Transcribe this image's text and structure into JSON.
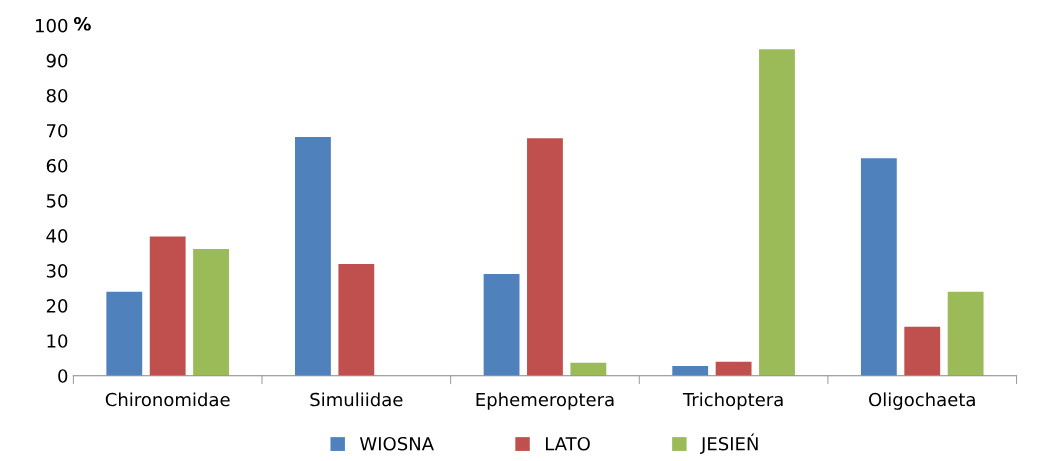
{
  "chart_data": {
    "type": "bar",
    "ylabel": "%",
    "categories": [
      "Chironomidae",
      "Simuliidae",
      "Ephemeroptera",
      "Trichoptera",
      "Oligochaeta"
    ],
    "series": [
      {
        "name": "WIOSNA",
        "color": "#4f81bd",
        "values": [
          24,
          68.1,
          29,
          2.8,
          62.1
        ]
      },
      {
        "name": "LATO",
        "color": "#c0504d",
        "values": [
          39.7,
          31.9,
          67.8,
          4,
          14
        ]
      },
      {
        "name": "JESIEŃ",
        "color": "#9bbb59",
        "values": [
          36.2,
          0,
          3.7,
          93.2,
          24
        ]
      }
    ],
    "ylim": [
      0,
      100
    ],
    "yticks": [
      0,
      10,
      20,
      30,
      40,
      50,
      60,
      70,
      80,
      90,
      100
    ],
    "grid": false,
    "legend": "bottom"
  }
}
